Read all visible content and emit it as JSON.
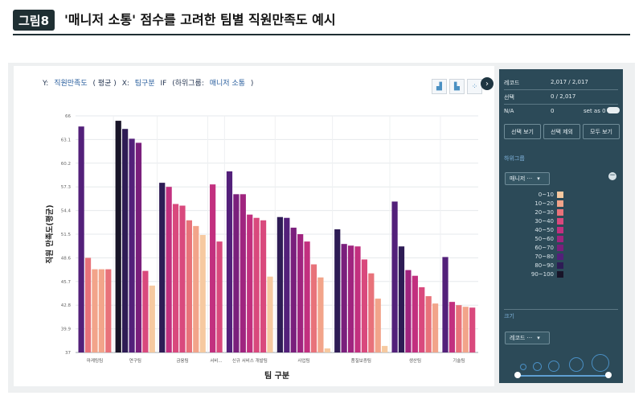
{
  "header": {
    "badge": "그림8",
    "title": "'매니저 소통' 점수를 고려한 팀별 직원만족도 예시"
  },
  "toolbar": {
    "y_prefix": "Y:",
    "y_metric": "직원만족도",
    "y_agg": "( 평균 )",
    "x_prefix": "X:",
    "x_metric": "팀구분",
    "x_if": "IF",
    "x_sub": "(하위그룹:",
    "x_subgroup": "매니저 소통",
    "x_close": ")"
  },
  "icons": {
    "view1": "bar-chart-icon",
    "view2": "column-chart-icon",
    "view3": "scatter-icon",
    "next": "chevron-right-icon"
  },
  "sidebar": {
    "records_label": "레코드",
    "records_value": "2,017 / 2,017",
    "selected_label": "선택",
    "selected_value": "0 / 2,017",
    "na_label": "N/A",
    "na_value": "0",
    "set_as_label": "set as 0",
    "btn_view": "선택 보기",
    "btn_exclude": "선택 제외",
    "btn_all": "모두 보기",
    "group_header": "하위그룹",
    "group_select": "매니저 ···",
    "legend": [
      {
        "label": "0~10",
        "color": "#f6c9a0"
      },
      {
        "label": "10~20",
        "color": "#f2a48a"
      },
      {
        "label": "20~30",
        "color": "#e8727a"
      },
      {
        "label": "30~40",
        "color": "#d9497d"
      },
      {
        "label": "40~50",
        "color": "#c2307f"
      },
      {
        "label": "50~60",
        "color": "#a0247f"
      },
      {
        "label": "60~70",
        "color": "#7a1f7c"
      },
      {
        "label": "70~80",
        "color": "#53207a"
      },
      {
        "label": "80~90",
        "color": "#2e1c55"
      },
      {
        "label": "90~100",
        "color": "#181428"
      }
    ],
    "size_header": "크기",
    "size_select": "레코드 ···"
  },
  "chart_data": {
    "type": "bar",
    "xlabel": "팀 구분",
    "ylabel": "직원 만족도(평균)",
    "ylim": [
      37,
      66
    ],
    "yticks": [
      "37",
      "39.9",
      "42.8",
      "45.7",
      "48.6",
      "51.5",
      "54.4",
      "57.3",
      "60.2",
      "63.1",
      "66"
    ],
    "groups": [
      {
        "name": "마케팅팀",
        "bars": [
          {
            "value": 64.7,
            "color": "#53207a"
          },
          {
            "value": 48.6,
            "color": "#e8727a"
          },
          {
            "value": 47.2,
            "color": "#f2a48a"
          },
          {
            "value": 47.2,
            "color": "#f2a48a"
          },
          {
            "value": 47.2,
            "color": "#e8727a"
          }
        ]
      },
      {
        "name": "연구팀",
        "bars": [
          {
            "value": 65.4,
            "color": "#181428"
          },
          {
            "value": 64.4,
            "color": "#2e1c55"
          },
          {
            "value": 63.2,
            "color": "#53207a"
          },
          {
            "value": 62.7,
            "color": "#7a1f7c"
          },
          {
            "value": 47.0,
            "color": "#d9497d"
          },
          {
            "value": 45.2,
            "color": "#f6c9a0"
          }
        ]
      },
      {
        "name": "금융팀",
        "bars": [
          {
            "value": 57.8,
            "color": "#2e1c55"
          },
          {
            "value": 57.3,
            "color": "#c2307f"
          },
          {
            "value": 55.2,
            "color": "#d9497d"
          },
          {
            "value": 55.0,
            "color": "#d9497d"
          },
          {
            "value": 53.2,
            "color": "#e8727a"
          },
          {
            "value": 52.5,
            "color": "#f2a48a"
          },
          {
            "value": 51.4,
            "color": "#f6c9a0"
          }
        ]
      },
      {
        "name": "서비...",
        "bars": [
          {
            "value": 57.6,
            "color": "#c2307f"
          },
          {
            "value": 50.6,
            "color": "#d9497d"
          }
        ]
      },
      {
        "name": "신규 서비스 개발팀",
        "bars": [
          {
            "value": 59.2,
            "color": "#53207a"
          },
          {
            "value": 56.4,
            "color": "#7a1f7c"
          },
          {
            "value": 56.4,
            "color": "#a0247f"
          },
          {
            "value": 53.9,
            "color": "#c2307f"
          },
          {
            "value": 53.5,
            "color": "#d9497d"
          },
          {
            "value": 53.2,
            "color": "#d9497d"
          },
          {
            "value": 46.3,
            "color": "#f6c9a0"
          }
        ]
      },
      {
        "name": "사업팀",
        "bars": [
          {
            "value": 53.6,
            "color": "#2e1c55"
          },
          {
            "value": 53.5,
            "color": "#53207a"
          },
          {
            "value": 52.3,
            "color": "#7a1f7c"
          },
          {
            "value": 51.5,
            "color": "#a0247f"
          },
          {
            "value": 50.6,
            "color": "#c2307f"
          },
          {
            "value": 47.8,
            "color": "#e8727a"
          },
          {
            "value": 46.2,
            "color": "#f2a48a"
          },
          {
            "value": 37.5,
            "color": "#f6c9a0"
          }
        ]
      },
      {
        "name": "품질보증팀",
        "bars": [
          {
            "value": 52.1,
            "color": "#2e1c55"
          },
          {
            "value": 50.3,
            "color": "#7a1f7c"
          },
          {
            "value": 50.1,
            "color": "#a0247f"
          },
          {
            "value": 50.0,
            "color": "#c2307f"
          },
          {
            "value": 48.4,
            "color": "#d9497d"
          },
          {
            "value": 46.7,
            "color": "#e8727a"
          },
          {
            "value": 43.6,
            "color": "#f2a48a"
          },
          {
            "value": 37.8,
            "color": "#f6c9a0"
          }
        ]
      },
      {
        "name": "생산팀",
        "bars": [
          {
            "value": 55.5,
            "color": "#53207a"
          },
          {
            "value": 50.0,
            "color": "#2e1c55"
          },
          {
            "value": 47.1,
            "color": "#a0247f"
          },
          {
            "value": 46.4,
            "color": "#c2307f"
          },
          {
            "value": 45.0,
            "color": "#d9497d"
          },
          {
            "value": 43.9,
            "color": "#e8727a"
          },
          {
            "value": 43.0,
            "color": "#f2a48a"
          }
        ]
      },
      {
        "name": "기술팀",
        "bars": [
          {
            "value": 48.7,
            "color": "#53207a"
          },
          {
            "value": 43.2,
            "color": "#c2307f"
          },
          {
            "value": 42.8,
            "color": "#e8727a"
          },
          {
            "value": 42.6,
            "color": "#f2a48a"
          },
          {
            "value": 42.5,
            "color": "#d9497d"
          }
        ]
      }
    ]
  }
}
